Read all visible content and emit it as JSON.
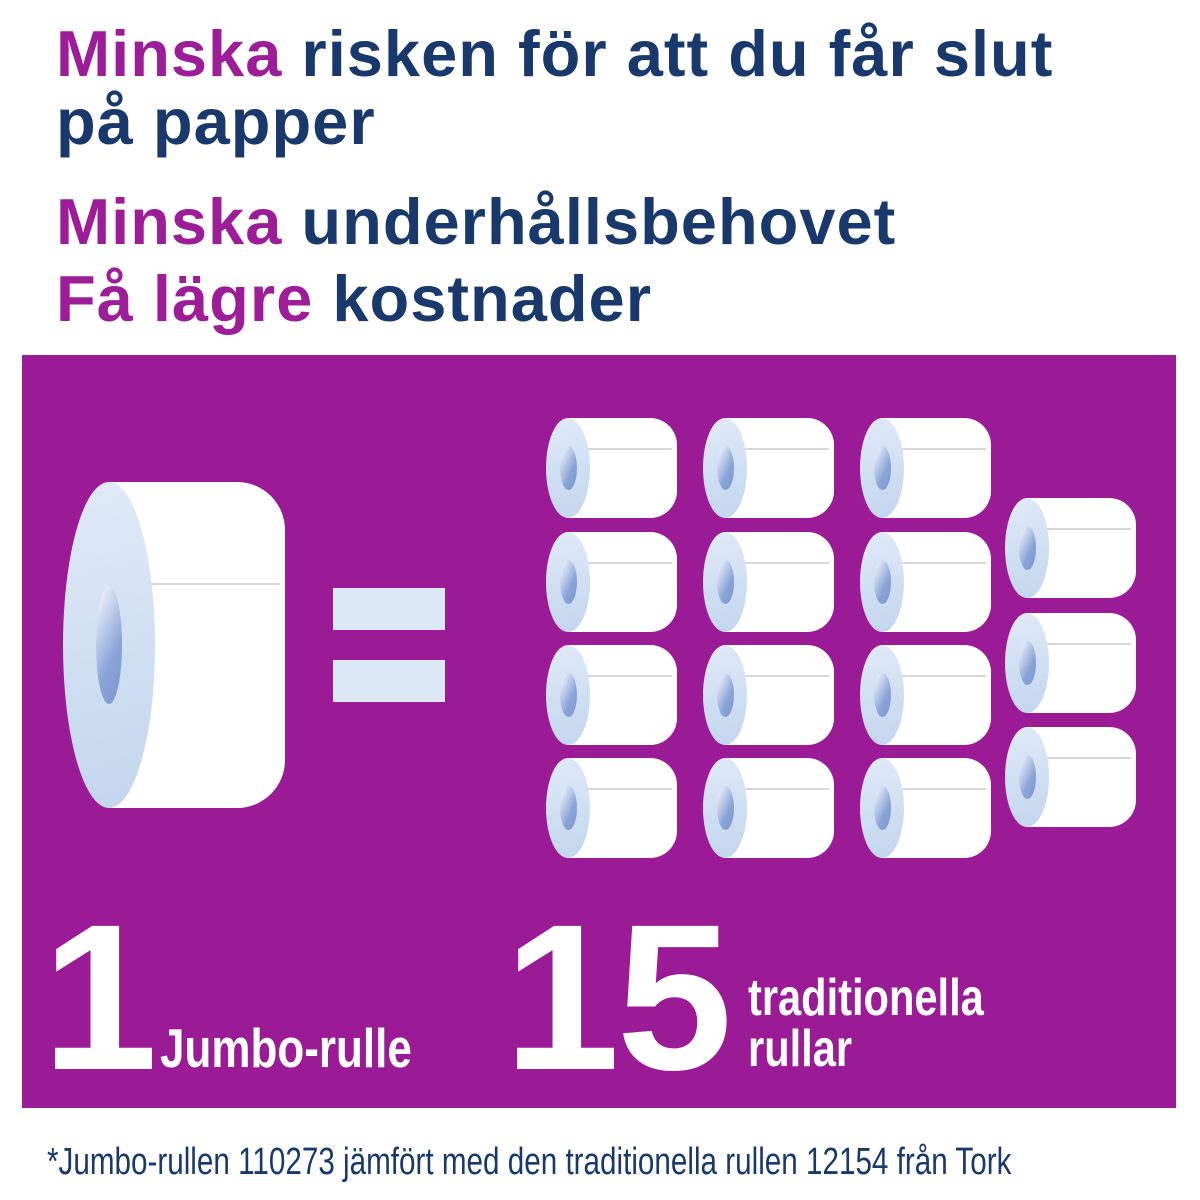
{
  "headlines": [
    {
      "accent": "Minska",
      "rest": "risken för att du får slut",
      "line2": "på papper"
    },
    {
      "accent": "Minska",
      "rest": "underhållsbehovet"
    },
    {
      "accent": "Få lägre",
      "rest": "kostnader"
    }
  ],
  "comparison": {
    "jumbo": {
      "count": "1",
      "label": "Jumbo-rulle"
    },
    "traditional": {
      "count": "15",
      "label_line1": "traditionella",
      "label_line2": "rullar",
      "roll_count": 15
    }
  },
  "footnote": "*Jumbo-rullen 110273 jämfört med den traditionella rullen 12154 från Tork",
  "colors": {
    "headline_navy": "#19396c",
    "accent_purple": "#9c1d97",
    "panel_purple": "#9a1b95",
    "roll_white": "#ffffff",
    "roll_cap_blue_light": "#e0eaf8",
    "roll_cap_blue": "#cfdff2",
    "roll_cap_blue_dark": "#c3d6ee",
    "roll_core_blue": "#8aa3d8",
    "roll_core_highlight": "#eef3fb",
    "seam_gray": "#d6d6d6",
    "equals_blue": "#dde8f7"
  }
}
